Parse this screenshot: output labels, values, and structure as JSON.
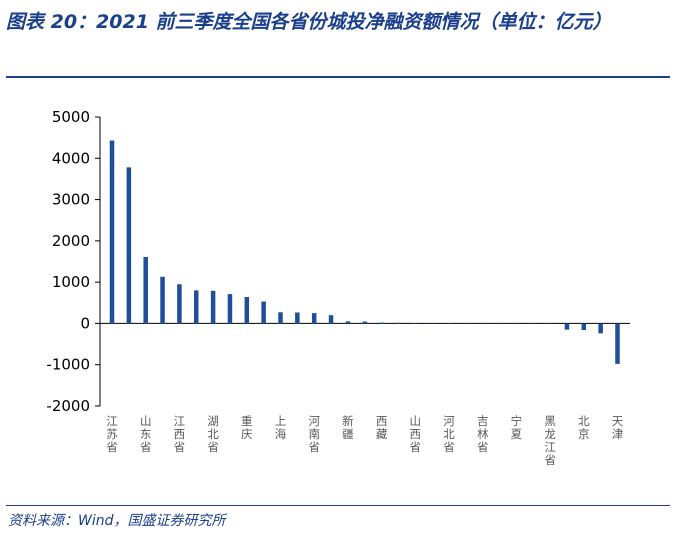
{
  "header": {
    "title": "图表 20：2021 前三季度全国各省份城投净融资额情况（单位：亿元）"
  },
  "footer": {
    "source": "资料来源：Wind，国盛证券研究所"
  },
  "colors": {
    "bar": "#1f4e9c",
    "title": "#1a3f8c",
    "axis": "#000000"
  },
  "chart_data": {
    "type": "bar",
    "title": "",
    "xlabel": "",
    "ylabel": "",
    "ylim": [
      -2000,
      5000
    ],
    "yticks": [
      5000,
      4000,
      3000,
      2000,
      1000,
      0,
      -1000,
      -2000
    ],
    "labeled_categories": [
      "江苏省",
      "山东省",
      "江西省",
      "湖北省",
      "重庆",
      "上海",
      "河南省",
      "新疆",
      "西藏",
      "山西省",
      "河北省",
      "吉林省",
      "宁夏",
      "黑龙江省",
      "北京",
      "天津"
    ],
    "categories": [
      "江苏省",
      "",
      "山东省",
      "",
      "江西省",
      "",
      "湖北省",
      "",
      "重庆",
      "",
      "上海",
      "",
      "河南省",
      "",
      "新疆",
      "",
      "西藏",
      "",
      "山西省",
      "",
      "河北省",
      "",
      "吉林省",
      "",
      "宁夏",
      "",
      "黑龙江省",
      "",
      "北京",
      "",
      "天津"
    ],
    "values": [
      4430,
      3780,
      1610,
      1130,
      950,
      800,
      790,
      710,
      640,
      530,
      270,
      265,
      250,
      200,
      50,
      45,
      20,
      15,
      5,
      3,
      2,
      1,
      0,
      -1,
      -2,
      -3,
      -5,
      -150,
      -160,
      -240,
      -980
    ],
    "grid": false,
    "legend": "none"
  }
}
